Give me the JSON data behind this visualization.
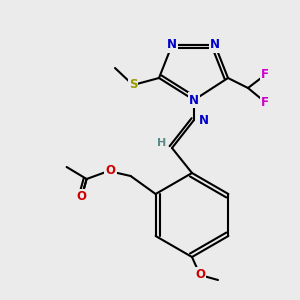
{
  "bg_color": "#ebebeb",
  "figsize": [
    3.0,
    3.0
  ],
  "dpi": 100,
  "bond_color": "#000000",
  "bond_lw": 1.5,
  "atom_colors": {
    "N": "#0000cc",
    "O": "#cc0000",
    "S": "#999900",
    "F": "#cc00cc",
    "H_label": "#5a8a8a",
    "C": "#000000"
  },
  "font_size": 8.5
}
